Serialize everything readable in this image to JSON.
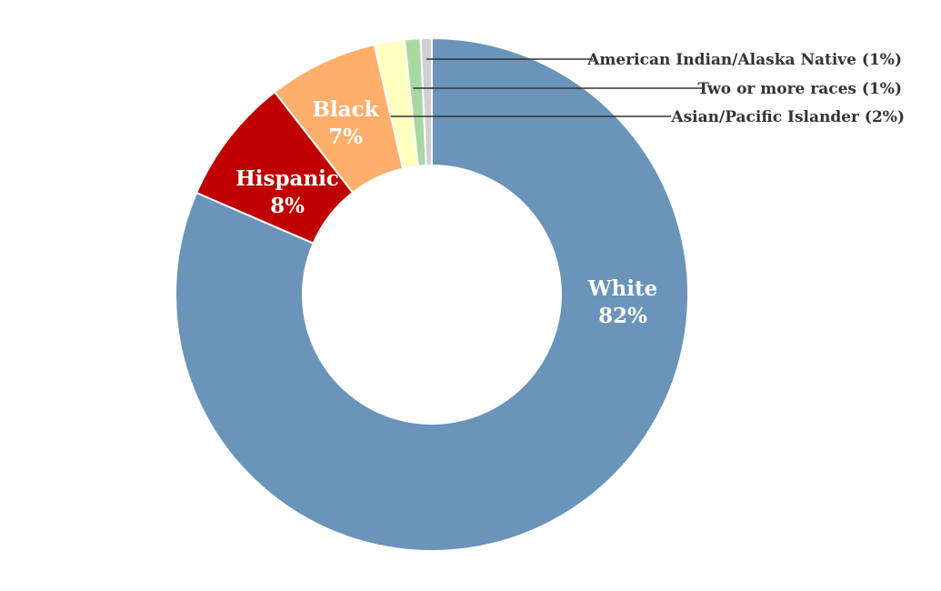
{
  "chart_data": {
    "type": "pie",
    "variant": "donut",
    "title": "",
    "slices": [
      {
        "name": "White",
        "pct_label": "82%",
        "value": 81.5,
        "color": "#6a94b9",
        "text_color": "#ffffff",
        "label_mode": "inside"
      },
      {
        "name": "Hispanic",
        "pct_label": "8%",
        "value": 8.0,
        "color": "#c00000",
        "text_color": "#ffffff",
        "label_mode": "inside"
      },
      {
        "name": "Black",
        "pct_label": "7%",
        "value": 6.9,
        "color": "#fdae6b",
        "text_color": "#ffffff",
        "label_mode": "inside"
      },
      {
        "name": "Asian/Pacific Islander",
        "pct_label": "2%",
        "value": 1.9,
        "color": "#ffffc0",
        "text_color": "#333333",
        "label_mode": "callout",
        "callout_text": "Asian/Pacific Islander (2%)"
      },
      {
        "name": "Two or more races",
        "pct_label": "1%",
        "value": 1.0,
        "color": "#a8d8a0",
        "text_color": "#333333",
        "label_mode": "callout",
        "callout_text": "Two or more races (1%)"
      },
      {
        "name": "American Indian/Alaska Native",
        "pct_label": "1%",
        "value": 0.7,
        "color": "#d0d0d0",
        "text_color": "#333333",
        "label_mode": "callout",
        "callout_text": "American Indian/Alaska Native (1%)"
      }
    ],
    "start_angle_deg": 0,
    "direction": "clockwise",
    "legend": "none"
  }
}
